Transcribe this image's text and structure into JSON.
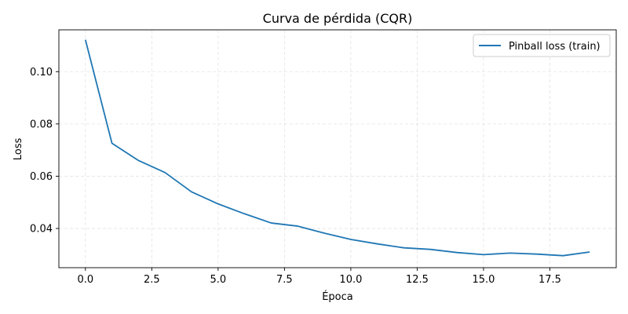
{
  "chart_data": {
    "type": "line",
    "title": "Curva de pérdida (CQR)",
    "xlabel": "Época",
    "ylabel": "Loss",
    "xlim": [
      -1,
      20
    ],
    "ylim": [
      0.025,
      0.116
    ],
    "xticks": [
      0.0,
      2.5,
      5.0,
      7.5,
      10.0,
      12.5,
      15.0,
      17.5
    ],
    "xtick_labels": [
      "0.0",
      "2.5",
      "5.0",
      "7.5",
      "10.0",
      "12.5",
      "15.0",
      "17.5"
    ],
    "yticks": [
      0.04,
      0.06,
      0.08,
      0.1
    ],
    "ytick_labels": [
      "0.04",
      "0.06",
      "0.08",
      "0.10"
    ],
    "grid": true,
    "legend_position": "top-right",
    "series": [
      {
        "name": "Pinball loss (train)",
        "color": "#1f77b4",
        "x": [
          0,
          1,
          2,
          3,
          4,
          5,
          6,
          7,
          8,
          9,
          10,
          11,
          12,
          13,
          14,
          15,
          16,
          17,
          18,
          19
        ],
        "y": [
          0.1122,
          0.0726,
          0.066,
          0.0614,
          0.054,
          0.0494,
          0.0456,
          0.0421,
          0.0409,
          0.0382,
          0.0358,
          0.0341,
          0.0326,
          0.032,
          0.0308,
          0.03,
          0.0306,
          0.0302,
          0.0296,
          0.031
        ]
      }
    ]
  }
}
